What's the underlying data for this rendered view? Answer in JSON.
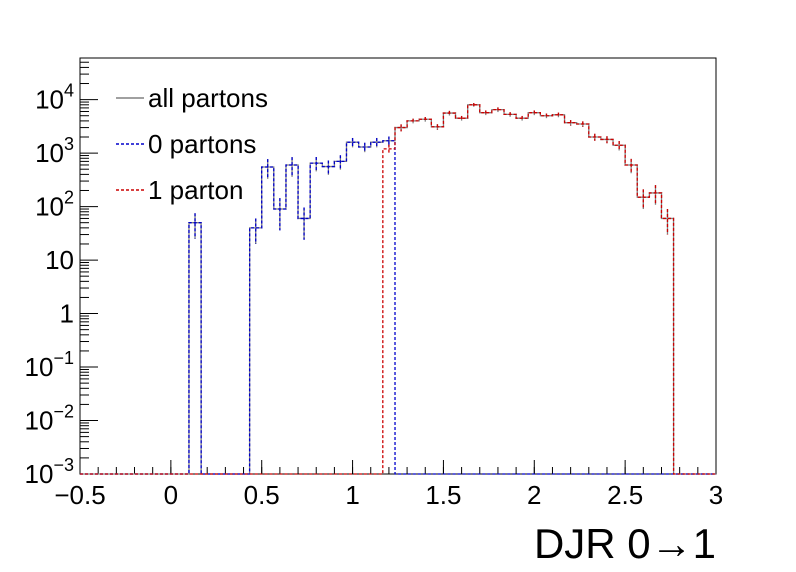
{
  "chart_data": {
    "type": "histogram",
    "title": "",
    "xlabel": "DJR 0→1",
    "ylabel": "",
    "xlim": [
      -0.5,
      3.0
    ],
    "ylim": [
      0.001,
      60000
    ],
    "yscale": "log",
    "grid": false,
    "legend": "top-left",
    "bin_width": 0.0667,
    "x": [
      0.133,
      0.2,
      0.267,
      0.333,
      0.4,
      0.467,
      0.533,
      0.6,
      0.667,
      0.733,
      0.8,
      0.867,
      0.933,
      1.0,
      1.067,
      1.133,
      1.2,
      1.267,
      1.333,
      1.4,
      1.467,
      1.533,
      1.6,
      1.667,
      1.733,
      1.8,
      1.867,
      1.933,
      2.0,
      2.067,
      2.133,
      2.2,
      2.267,
      2.333,
      2.4,
      2.467,
      2.533,
      2.6,
      2.667,
      2.733,
      2.8,
      2.867,
      2.933,
      3.0
    ],
    "series": [
      {
        "name": "all partons",
        "color": "#808080",
        "values": [
          50,
          0.001,
          0.001,
          0.001,
          0.001,
          40,
          550,
          90,
          600,
          60,
          650,
          560,
          700,
          1600,
          1300,
          1600,
          1700,
          3000,
          4000,
          4300,
          3100,
          5600,
          4500,
          8000,
          5700,
          6500,
          5300,
          4500,
          5700,
          5000,
          5200,
          3700,
          3500,
          2000,
          1800,
          1400,
          600,
          150,
          180,
          60,
          0,
          0,
          0,
          0
        ],
        "errors_rel": [
          0.5,
          0,
          0,
          0,
          0,
          0.5,
          0.4,
          0.6,
          0.4,
          0.6,
          0.3,
          0.3,
          0.3,
          0.2,
          0.2,
          0.2,
          0.2,
          0.15,
          0.1,
          0.1,
          0.12,
          0.1,
          0.1,
          0.08,
          0.1,
          0.1,
          0.1,
          0.1,
          0.1,
          0.1,
          0.1,
          0.12,
          0.12,
          0.15,
          0.15,
          0.2,
          0.3,
          0.4,
          0.4,
          0.5,
          0,
          0,
          0,
          0
        ]
      },
      {
        "name": "0 partons",
        "color": "#0000cc",
        "values": [
          50,
          0.001,
          0.001,
          0.001,
          0.001,
          40,
          550,
          90,
          600,
          60,
          650,
          560,
          700,
          1600,
          1300,
          1600,
          1700,
          0.001,
          0.001,
          0.001,
          0.001,
          0.001,
          0.001,
          0.001,
          0.001,
          0.001,
          0.001,
          0.001,
          0.001,
          0.001,
          0.001,
          0.001,
          0.001,
          0.001,
          0.001,
          0.001,
          0.001,
          0.001,
          0.001,
          0.001,
          0.001,
          0.001,
          0.001,
          0.001
        ],
        "errors_rel": [
          0.5,
          0,
          0,
          0,
          0,
          0.5,
          0.4,
          0.6,
          0.4,
          0.6,
          0.3,
          0.3,
          0.3,
          0.2,
          0.2,
          0.2,
          0.2,
          0,
          0,
          0,
          0,
          0,
          0,
          0,
          0,
          0,
          0,
          0,
          0,
          0,
          0,
          0,
          0,
          0,
          0,
          0,
          0,
          0,
          0,
          0,
          0,
          0,
          0,
          0
        ]
      },
      {
        "name": "1 parton",
        "color": "#cc0000",
        "values": [
          0.001,
          0.001,
          0.001,
          0.001,
          0.001,
          0.001,
          0.001,
          0.001,
          0.001,
          0.001,
          0.001,
          0.001,
          0.001,
          0.001,
          0.001,
          0.001,
          1200,
          3000,
          4000,
          4300,
          3100,
          5600,
          4500,
          8000,
          5700,
          6500,
          5300,
          4500,
          5700,
          5000,
          5200,
          3700,
          3500,
          2000,
          1800,
          1400,
          600,
          150,
          180,
          60,
          0.001,
          0.001,
          0.001,
          0.001
        ],
        "errors_rel": [
          0,
          0,
          0,
          0,
          0,
          0,
          0,
          0,
          0,
          0,
          0,
          0,
          0,
          0,
          0,
          0,
          0.2,
          0.15,
          0.1,
          0.1,
          0.12,
          0.1,
          0.1,
          0.08,
          0.1,
          0.1,
          0.1,
          0.1,
          0.1,
          0.1,
          0.1,
          0.12,
          0.12,
          0.15,
          0.15,
          0.2,
          0.3,
          0.4,
          0.4,
          0.5,
          0,
          0,
          0,
          0
        ]
      }
    ],
    "x_ticks": [
      {
        "value": -0.5,
        "label": "−0.5"
      },
      {
        "value": 0,
        "label": "0"
      },
      {
        "value": 0.5,
        "label": "0.5"
      },
      {
        "value": 1,
        "label": "1"
      },
      {
        "value": 1.5,
        "label": "1.5"
      },
      {
        "value": 2,
        "label": "2"
      },
      {
        "value": 2.5,
        "label": "2.5"
      },
      {
        "value": 3,
        "label": "3"
      }
    ],
    "y_ticks": [
      {
        "value": 0.001,
        "base": "10",
        "exp": "−3"
      },
      {
        "value": 0.01,
        "base": "10",
        "exp": "−2"
      },
      {
        "value": 0.1,
        "base": "10",
        "exp": "−1"
      },
      {
        "value": 1,
        "base": "1",
        "exp": ""
      },
      {
        "value": 10,
        "base": "10",
        "exp": ""
      },
      {
        "value": 100,
        "base": "10",
        "exp": "2"
      },
      {
        "value": 1000,
        "base": "10",
        "exp": "3"
      },
      {
        "value": 10000,
        "base": "10",
        "exp": "4"
      }
    ]
  }
}
